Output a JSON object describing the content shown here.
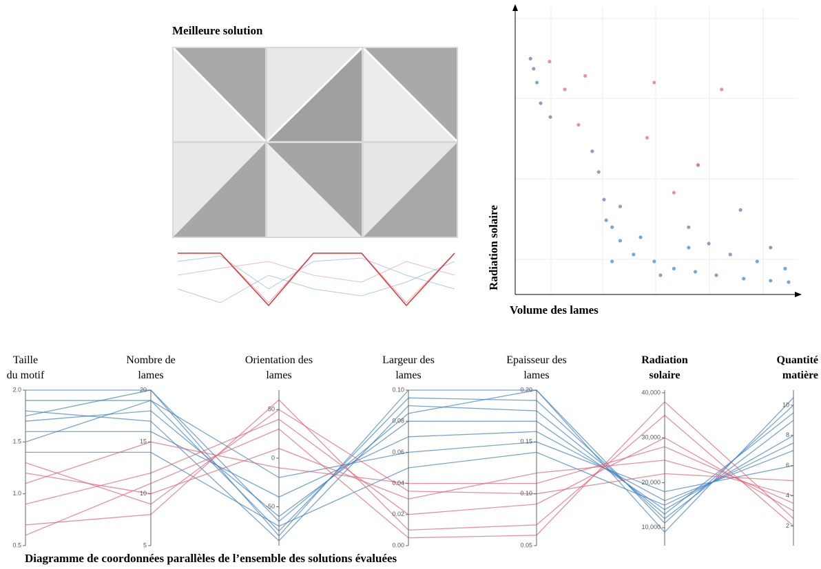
{
  "best_solution": {
    "title": "Meilleure solution"
  },
  "chart_data": [
    {
      "type": "scatter",
      "ylabel": "Radiation solaire",
      "xlabel": "Volume des lames",
      "xlim": [
        0,
        100
      ],
      "ylim": [
        0,
        100
      ],
      "x": [
        2.6,
        3.8,
        5,
        9.7,
        6.4,
        10,
        15.4,
        23,
        20.5,
        25.6,
        30,
        33,
        48.7,
        73.8,
        46,
        65,
        56,
        80.8,
        28,
        36,
        41,
        48.7,
        56,
        64,
        71.8,
        82,
        92,
        98.7,
        43.6,
        61.5,
        77,
        87,
        97.4,
        33,
        51,
        69,
        92,
        30.8,
        36,
        61.5
      ],
      "y": [
        82,
        78.5,
        73.7,
        81,
        66.5,
        61.7,
        71.3,
        76,
        59,
        49.8,
        33,
        23.4,
        73.7,
        71.3,
        54.5,
        45,
        35.4,
        29.4,
        42.6,
        18.7,
        13.9,
        11.5,
        9,
        7.9,
        6.7,
        5.5,
        4.8,
        4.3,
        19.9,
        16.3,
        13.9,
        11.5,
        9,
        11.5,
        6.7,
        17.7,
        16.3,
        25.8,
        30.6,
        23.4
      ],
      "colors": [
        "#8a6fa8",
        "#8a6fa8",
        "#4a8ac8",
        "#e0707a",
        "#8a6fa8",
        "#8a6fa8",
        "#e0707a",
        "#e0707a",
        "#e0707a",
        "#8a6fa8",
        "#8a6fa8",
        "#4a8ac8",
        "#e0707a",
        "#e0707a",
        "#e0707a",
        "#d9505a",
        "#e0707a",
        "#8a6fa8",
        "#8a6fa8",
        "#4a8ac8",
        "#4a8ac8",
        "#4a8ac8",
        "#4a8ac8",
        "#4a8ac8",
        "#4a8ac8",
        "#4a8ac8",
        "#4a8ac8",
        "#4a8ac8",
        "#4a8ac8",
        "#4a8ac8",
        "#8a6fa8",
        "#4a8ac8",
        "#4a8ac8",
        "#4a8ac8",
        "#4a8ac8",
        "#8a6fa8",
        "#8a6fa8",
        "#4a8ac8",
        "#8a6fa8",
        "#8a6fa8"
      ]
    },
    {
      "type": "parallel",
      "title": "Diagramme de coordonnées parallèles de l’ensemble des solutions évaluées",
      "dimensions": [
        {
          "label": [
            "Taille",
            "du motif"
          ],
          "bold": false,
          "ylim": [
            0.5,
            2.0
          ],
          "yticks": [
            0.5,
            {
              "value": 1,
              "label": "1.0"
            },
            1.5,
            {
              "value": 2,
              "label": "2.0"
            }
          ]
        },
        {
          "label": [
            "Nombre de",
            "lames"
          ],
          "bold": false,
          "ylim": [
            5,
            20
          ],
          "yticks": [
            5,
            10,
            15,
            20
          ]
        },
        {
          "label": [
            "Orientation des",
            "lames"
          ],
          "bold": false,
          "ylim": [
            -90,
            70
          ],
          "yticks": [
            -50,
            0,
            50
          ]
        },
        {
          "label": [
            "Largeur des",
            "lames"
          ],
          "bold": false,
          "ylim": [
            0,
            0.1
          ],
          "yticks": [
            {
              "value": 0,
              "label": "0.00"
            },
            0.02,
            0.04,
            0.06,
            0.08,
            {
              "value": 0.1,
              "label": "0.10"
            }
          ]
        },
        {
          "label": [
            "Epaisseur des",
            "lames"
          ],
          "bold": false,
          "ylim": [
            0.05,
            0.2
          ],
          "yticks": [
            0.05,
            {
              "value": 0.1,
              "label": "0.10"
            },
            0.15,
            {
              "value": 0.2,
              "label": "0.20"
            }
          ]
        },
        {
          "label": [
            "Radiation",
            "solaire"
          ],
          "bold": true,
          "ylim": [
            6000,
            40600
          ],
          "yticks": [
            {
              "value": 10000,
              "label": "10,000"
            },
            {
              "value": 20000,
              "label": "20,000"
            },
            {
              "value": 30000,
              "label": "30,000"
            },
            {
              "value": 40000,
              "label": "40,000"
            }
          ]
        },
        {
          "label": [
            "Quantité",
            "matière"
          ],
          "bold": true,
          "ylim": [
            0.7,
            11
          ],
          "yticks": [
            2,
            4,
            6,
            8,
            10
          ]
        }
      ],
      "lines": [
        {
          "color": "#3a7fc2",
          "values": [
            1.9,
            19,
            -75,
            0.095,
            0.19,
            12000,
            9
          ]
        },
        {
          "color": "#3a7fc2",
          "values": [
            1.7,
            18,
            -60,
            0.08,
            0.17,
            14000,
            8
          ]
        },
        {
          "color": "#3a7fc2",
          "values": [
            2.0,
            20,
            -80,
            0.1,
            0.2,
            11000,
            10
          ]
        },
        {
          "color": "#3a7fc2",
          "values": [
            1.6,
            16,
            -40,
            0.07,
            0.16,
            16000,
            7
          ]
        },
        {
          "color": "#3a7fc2",
          "values": [
            1.8,
            17,
            -85,
            0.09,
            0.18,
            13000,
            9.5
          ]
        },
        {
          "color": "#3a7fc2",
          "values": [
            1.5,
            19,
            -20,
            0.06,
            0.15,
            18000,
            6
          ]
        },
        {
          "color": "#3a7fc2",
          "values": [
            1.75,
            20,
            -65,
            0.085,
            0.2,
            9000,
            10.5
          ]
        },
        {
          "color": "#3a7fc2",
          "values": [
            1.4,
            14,
            -70,
            0.05,
            0.14,
            15000,
            7.5
          ]
        },
        {
          "color": "#e06070",
          "values": [
            0.9,
            12,
            40,
            0.02,
            0.09,
            30000,
            3
          ]
        },
        {
          "color": "#e06070",
          "values": [
            1.2,
            10,
            10,
            0.03,
            0.12,
            25000,
            4
          ]
        },
        {
          "color": "#e06070",
          "values": [
            0.7,
            8,
            60,
            0.01,
            0.07,
            35000,
            2
          ]
        },
        {
          "color": "#e06070",
          "values": [
            1.1,
            15,
            -10,
            0.04,
            0.11,
            28000,
            3.5
          ]
        },
        {
          "color": "#e06070",
          "values": [
            0.6,
            11,
            30,
            0.005,
            0.06,
            38000,
            2.5
          ]
        },
        {
          "color": "#e06070",
          "values": [
            1.3,
            9,
            50,
            0.035,
            0.1,
            22000,
            5
          ]
        }
      ]
    }
  ]
}
